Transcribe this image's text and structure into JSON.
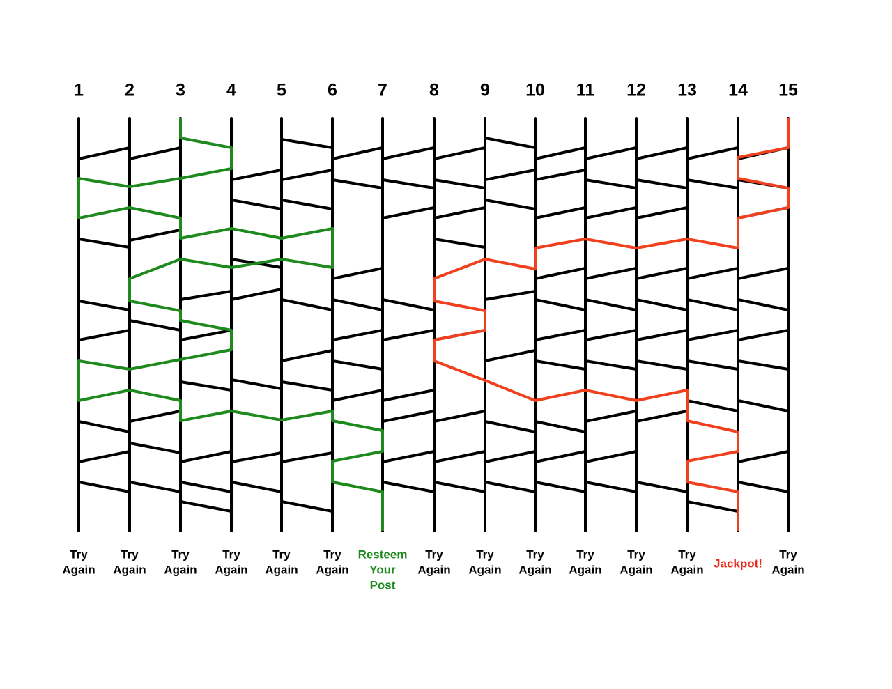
{
  "columns": [
    "1",
    "2",
    "3",
    "4",
    "5",
    "6",
    "7",
    "8",
    "9",
    "10",
    "11",
    "12",
    "13",
    "14",
    "15"
  ],
  "outcomes": [
    [
      "Try",
      "Again"
    ],
    [
      "Try",
      "Again"
    ],
    [
      "Try",
      "Again"
    ],
    [
      "Try",
      "Again"
    ],
    [
      "Try",
      "Again"
    ],
    [
      "Try",
      "Again"
    ],
    [
      "Resteem",
      "Your",
      "Post"
    ],
    [
      "Try",
      "Again"
    ],
    [
      "Try",
      "Again"
    ],
    [
      "Try",
      "Again"
    ],
    [
      "Try",
      "Again"
    ],
    [
      "Try",
      "Again"
    ],
    [
      "Try",
      "Again"
    ],
    [
      "Jackpot!"
    ],
    [
      "Try",
      "Again"
    ]
  ]
}
